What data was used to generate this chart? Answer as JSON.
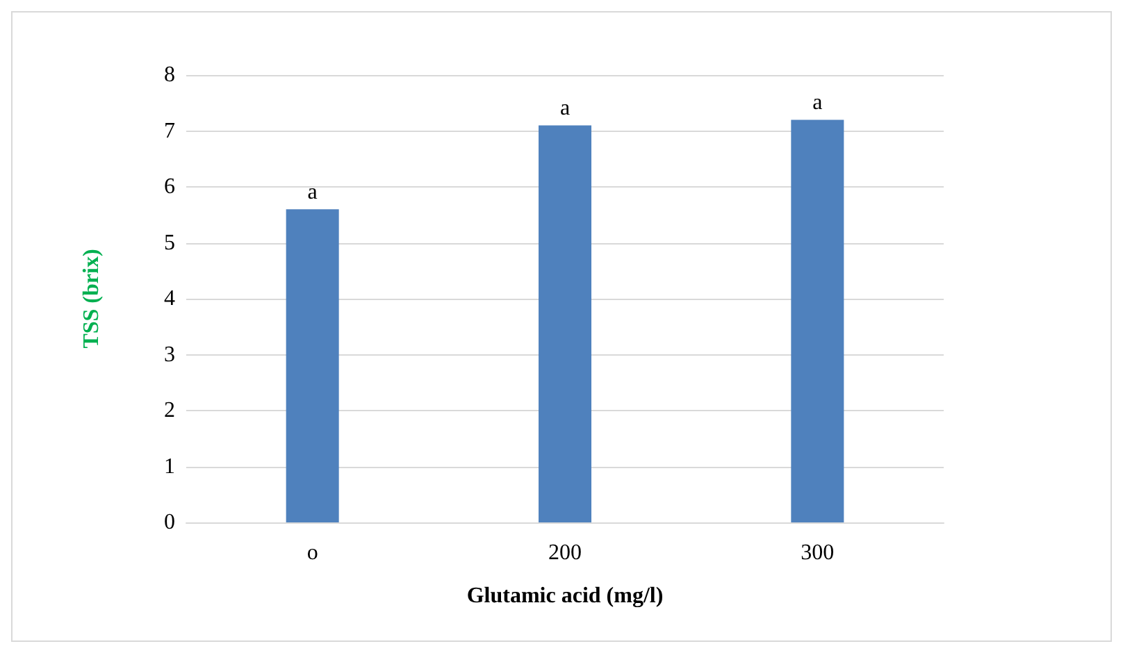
{
  "chart_data": {
    "type": "bar",
    "xlabel": "Glutamic acid (mg/l)",
    "ylabel": "TSS (brix)",
    "categories": [
      "o",
      "200",
      "300"
    ],
    "values": [
      5.6,
      7.1,
      7.2
    ],
    "color": "#4f81bd",
    "ylim": [
      0,
      8
    ],
    "yticks": [
      0,
      1,
      2,
      3,
      4,
      5,
      6,
      7,
      8
    ],
    "grid": "y",
    "annotations": [
      {
        "text": "a",
        "x": "o",
        "y": 5.6
      },
      {
        "text": "a",
        "x": "200",
        "y": 7.1
      },
      {
        "text": "a",
        "x": "300",
        "y": 7.2
      }
    ]
  }
}
